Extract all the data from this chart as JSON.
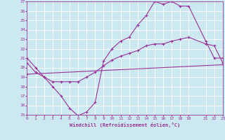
{
  "xlabel": "Windchill (Refroidissement éolien,°C)",
  "background_color": "#cce8f0",
  "grid_color": "#ffffff",
  "line_color": "#993399",
  "xmin": 0,
  "xmax": 23,
  "ymin": 15,
  "ymax": 27,
  "line1_x": [
    0,
    1,
    2,
    3,
    4,
    5,
    6,
    7,
    8,
    9,
    10,
    11,
    12,
    13,
    14,
    15,
    16,
    17,
    18,
    19,
    21,
    22,
    23
  ],
  "line1_y": [
    21.0,
    20.0,
    19.0,
    18.0,
    17.0,
    15.7,
    14.9,
    15.3,
    16.3,
    20.7,
    22.0,
    22.8,
    23.2,
    24.5,
    25.5,
    27.0,
    26.7,
    27.0,
    26.5,
    26.5,
    22.8,
    21.0,
    21.0
  ],
  "line2_x": [
    0,
    1,
    2,
    3,
    4,
    5,
    6,
    7,
    8,
    9,
    10,
    11,
    12,
    13,
    14,
    15,
    16,
    17,
    18,
    19,
    21,
    22,
    23
  ],
  "line2_y": [
    20.5,
    19.5,
    19.0,
    18.5,
    18.5,
    18.5,
    18.5,
    19.0,
    19.5,
    20.2,
    20.8,
    21.2,
    21.5,
    21.8,
    22.3,
    22.5,
    22.5,
    22.8,
    23.0,
    23.2,
    22.5,
    22.3,
    20.5
  ],
  "line3_x": [
    0,
    23
  ],
  "line3_y": [
    19.3,
    20.3
  ],
  "xticks": [
    0,
    1,
    2,
    3,
    4,
    5,
    6,
    7,
    8,
    9,
    10,
    11,
    12,
    13,
    14,
    15,
    16,
    17,
    18,
    19,
    21,
    22,
    23
  ],
  "yticks": [
    15,
    16,
    17,
    18,
    19,
    20,
    21,
    22,
    23,
    24,
    25,
    26,
    27
  ]
}
